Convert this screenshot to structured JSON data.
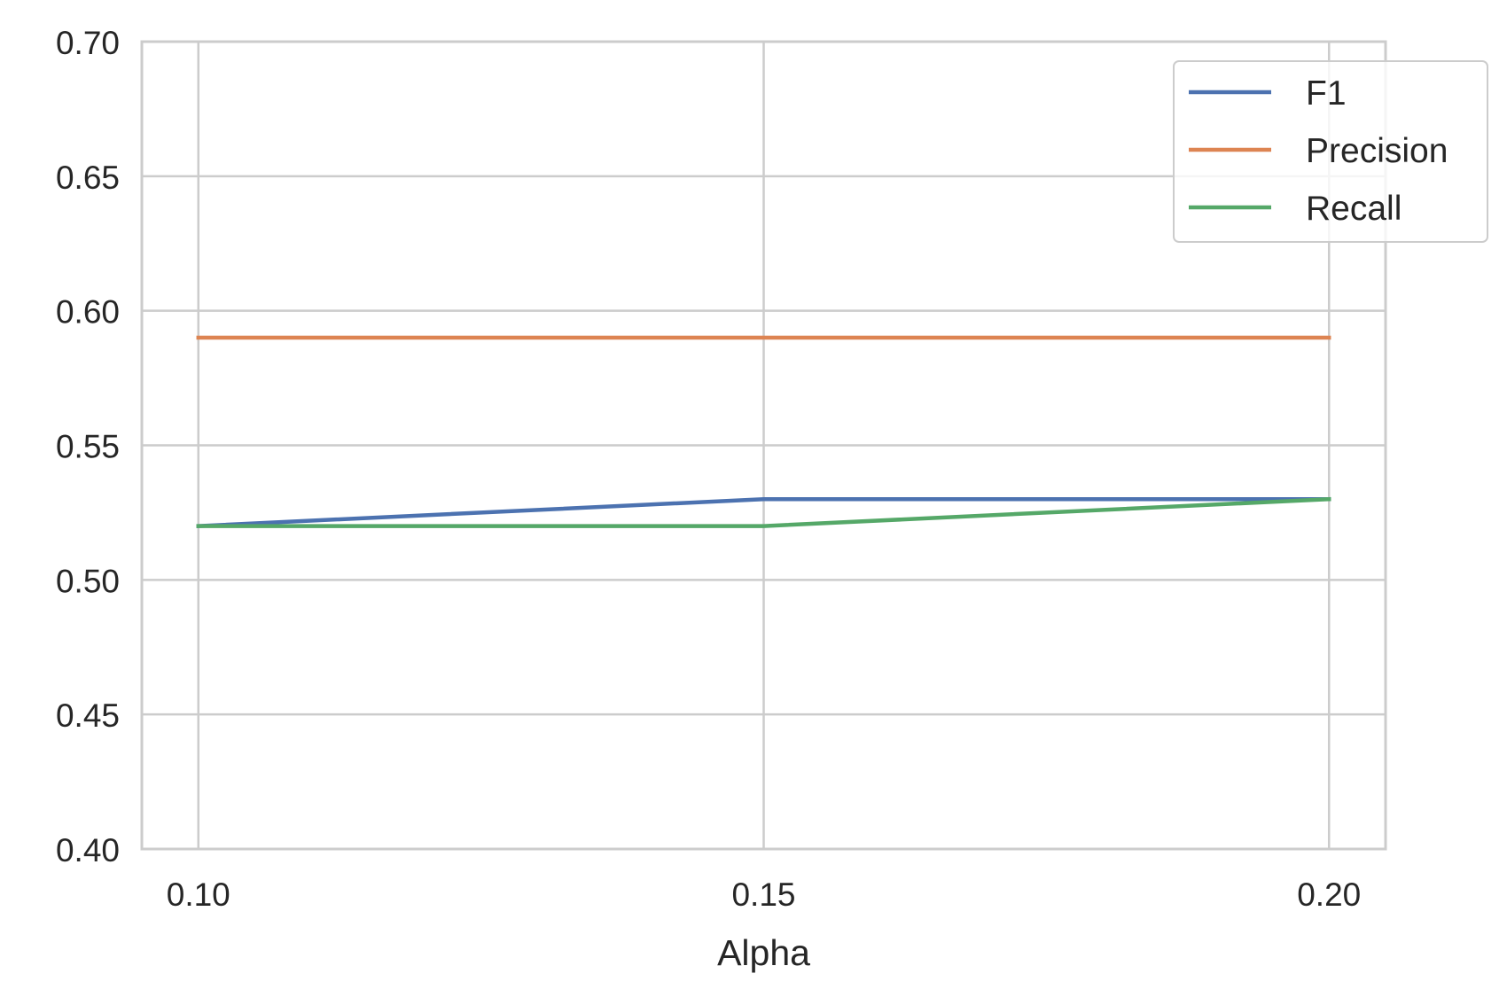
{
  "chart_data": {
    "type": "line",
    "title": "",
    "xlabel": "Alpha",
    "ylabel": "",
    "x": [
      0.1,
      0.15,
      0.2
    ],
    "x_ticks": [
      "0.10",
      "0.15",
      "0.20"
    ],
    "xlim": [
      0.095,
      0.205
    ],
    "ylim": [
      0.4,
      0.7
    ],
    "y_ticks": [
      "0.40",
      "0.45",
      "0.50",
      "0.55",
      "0.60",
      "0.65",
      "0.70"
    ],
    "grid": true,
    "legend_position": "top-right",
    "series": [
      {
        "name": "F1",
        "values": [
          0.52,
          0.53,
          0.53
        ],
        "color": "#4c72b0"
      },
      {
        "name": "Precision",
        "values": [
          0.59,
          0.59,
          0.59
        ],
        "color": "#dd8452"
      },
      {
        "name": "Recall",
        "values": [
          0.52,
          0.52,
          0.53
        ],
        "color": "#55a868"
      }
    ],
    "colors": {
      "grid": "#cccccc",
      "axes_edge": "#cccccc",
      "text": "#262626"
    }
  }
}
